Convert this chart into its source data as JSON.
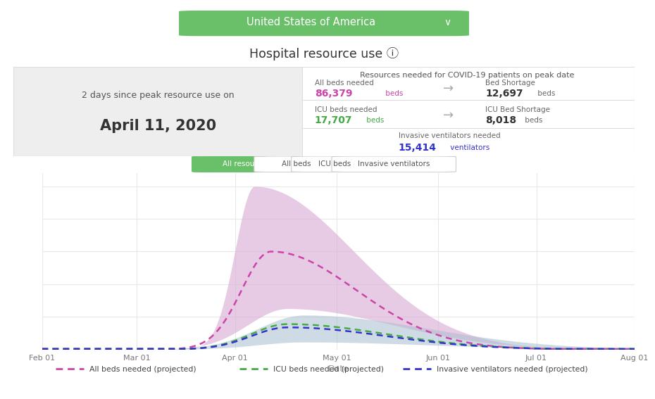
{
  "title": "Hospital resource use ⓘ",
  "header_bg": "#6abf69",
  "header_text": "United States of America",
  "info_panel": {
    "left_text_line1": "2 days since peak resource use on",
    "left_text_line2": "April 11, 2020",
    "right_title": "Resources needed for COVID-19 patients on peak date",
    "all_beds_label": "All beds needed",
    "all_beds_value": "86,379",
    "all_beds_unit": " beds",
    "all_beds_color": "#cc44aa",
    "bed_shortage_label": "Bed Shortage",
    "bed_shortage_value": "12,697",
    "bed_shortage_unit": " beds",
    "icu_label": "ICU beds needed",
    "icu_value": "17,707",
    "icu_unit": " beds",
    "icu_color": "#44aa44",
    "icu_shortage_label": "ICU Bed Shortage",
    "icu_shortage_value": "8,018",
    "icu_shortage_unit": " beds",
    "vent_label": "Invasive ventilators needed",
    "vent_value": "15,414",
    "vent_unit": " ventilators",
    "vent_color": "#3333cc"
  },
  "tabs": [
    "All resources",
    "All beds",
    "ICU beds",
    "Invasive ventilators"
  ],
  "active_tab": "All resources",
  "tab_active_color": "#6abf69",
  "tab_active_text": "#ffffff",
  "chart": {
    "all_beds_color": "#cc44aa",
    "icu_color": "#44aa44",
    "vent_color": "#3333cc",
    "fill_all_beds_color": "#dbaed4",
    "fill_icu_color": "#a8bece",
    "xlabels": [
      "Feb 01",
      "Mar 01",
      "Apr 01",
      "May 01",
      "Jun 01",
      "Jul 01",
      "Aug 01"
    ],
    "month_ticks": [
      0,
      29,
      59,
      90,
      121,
      151,
      181
    ],
    "xlabel": "Date"
  },
  "legend": [
    {
      "label": "All beds needed (projected)",
      "color": "#cc44aa"
    },
    {
      "label": "ICU beds needed (projected)",
      "color": "#44aa44"
    },
    {
      "label": "Invasive ventilators needed (projected)",
      "color": "#3333cc"
    }
  ]
}
